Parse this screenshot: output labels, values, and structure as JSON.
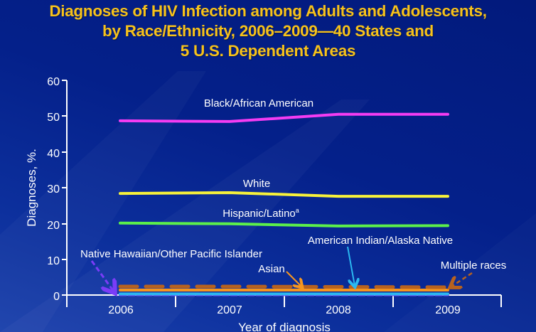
{
  "title": {
    "line1": "Diagnoses of HIV Infection among Adults and Adolescents,",
    "line2": "by Race/Ethnicity, 2006–2009—40 States and",
    "line3": "5 U.S. Dependent Areas"
  },
  "colors": {
    "title": "#f7c21a",
    "background": "#04208a",
    "axis": "#ffffff",
    "black_african_american": "#f43cf2",
    "white": "#f8f23a",
    "hispanic_latino": "#5cf04a",
    "asian": "#f7961e",
    "multiple_races": "#b8621e",
    "american_indian_alaska_native": "#2bb8f0",
    "native_hawaiian_other_pacific_islander": "#7a3cf8"
  },
  "axes": {
    "ylabel": "Diagnoses, %.",
    "xlabel": "Year of diagnosis",
    "yticks": [
      "0",
      "10",
      "20",
      "30",
      "40",
      "50",
      "60"
    ],
    "xticks": [
      "2006",
      "2007",
      "2008",
      "2009"
    ]
  },
  "labels": {
    "black": "Black/African American",
    "white": "White",
    "hispanic": "Hispanic/Latino",
    "hispanic_sup": "a",
    "aian": "American Indian/Alaska Native",
    "nhopi": "Native Hawaiian/Other Pacific Islander",
    "asian": "Asian",
    "multiple": "Multiple races"
  },
  "chart_data": {
    "type": "line",
    "title": "Diagnoses of HIV Infection among Adults and Adolescents, by Race/Ethnicity, 2006–2009—40 States and 5 U.S. Dependent Areas",
    "xlabel": "Year of diagnosis",
    "ylabel": "Diagnoses, %.",
    "x": [
      "2006",
      "2007",
      "2008",
      "2009"
    ],
    "ylim": [
      0,
      60
    ],
    "yticks": [
      0,
      10,
      20,
      30,
      40,
      50,
      60
    ],
    "grid": false,
    "legend": "inline labels",
    "series": [
      {
        "name": "Black/African American",
        "values": [
          48.7,
          48.5,
          50.5,
          50.5
        ],
        "color": "#f43cf2"
      },
      {
        "name": "White",
        "values": [
          28.4,
          28.6,
          27.6,
          27.6
        ],
        "color": "#f8f23a"
      },
      {
        "name": "Hispanic/Latino",
        "values": [
          20.1,
          19.9,
          19.3,
          19.4
        ],
        "color": "#5cf04a"
      },
      {
        "name": "Multiple races",
        "values": [
          1.4,
          1.4,
          1.3,
          1.2
        ],
        "color": "#b8621e",
        "style": "dashed"
      },
      {
        "name": "Asian",
        "values": [
          1.0,
          1.0,
          1.0,
          1.0
        ],
        "color": "#f7961e"
      },
      {
        "name": "American Indian/Alaska Native",
        "values": [
          0.3,
          0.3,
          0.3,
          0.3
        ],
        "color": "#2bb8f0"
      },
      {
        "name": "Native Hawaiian/Other Pacific Islander",
        "values": [
          0.1,
          0.1,
          0.1,
          0.1
        ],
        "color": "#7a3cf8",
        "style": "dashed"
      }
    ],
    "annotations": [
      "a Hispanic/Latino footnote marker"
    ]
  }
}
